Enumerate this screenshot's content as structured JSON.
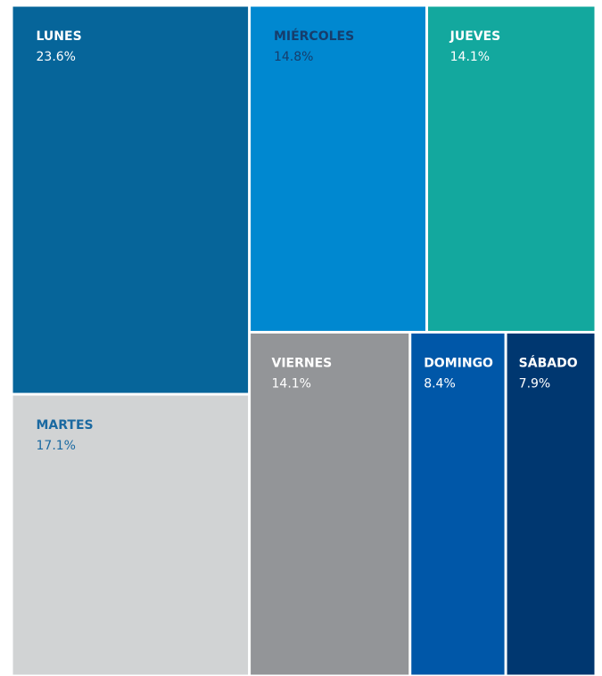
{
  "chart_data": {
    "type": "treemap",
    "categories": [
      "LUNES",
      "MARTES",
      "MIÉRCOLES",
      "JUEVES",
      "VIERNES",
      "DOMINGO",
      "SÁBADO"
    ],
    "values": [
      23.6,
      17.1,
      14.8,
      14.1,
      14.1,
      8.4,
      7.9
    ],
    "value_labels": [
      "23.6%",
      "17.1%",
      "14.8%",
      "14.1%",
      "14.1%",
      "8.4%",
      "7.9%"
    ],
    "colors": [
      "#06659a",
      "#d1d3d4",
      "#0088d0",
      "#13a89e",
      "#939598",
      "#0057a8",
      "#003770"
    ],
    "label_colors": [
      "#ffffff",
      "#1a69a1",
      "#163d6c",
      "#ffffff",
      "#ffffff",
      "#ffffff",
      "#ffffff"
    ]
  }
}
